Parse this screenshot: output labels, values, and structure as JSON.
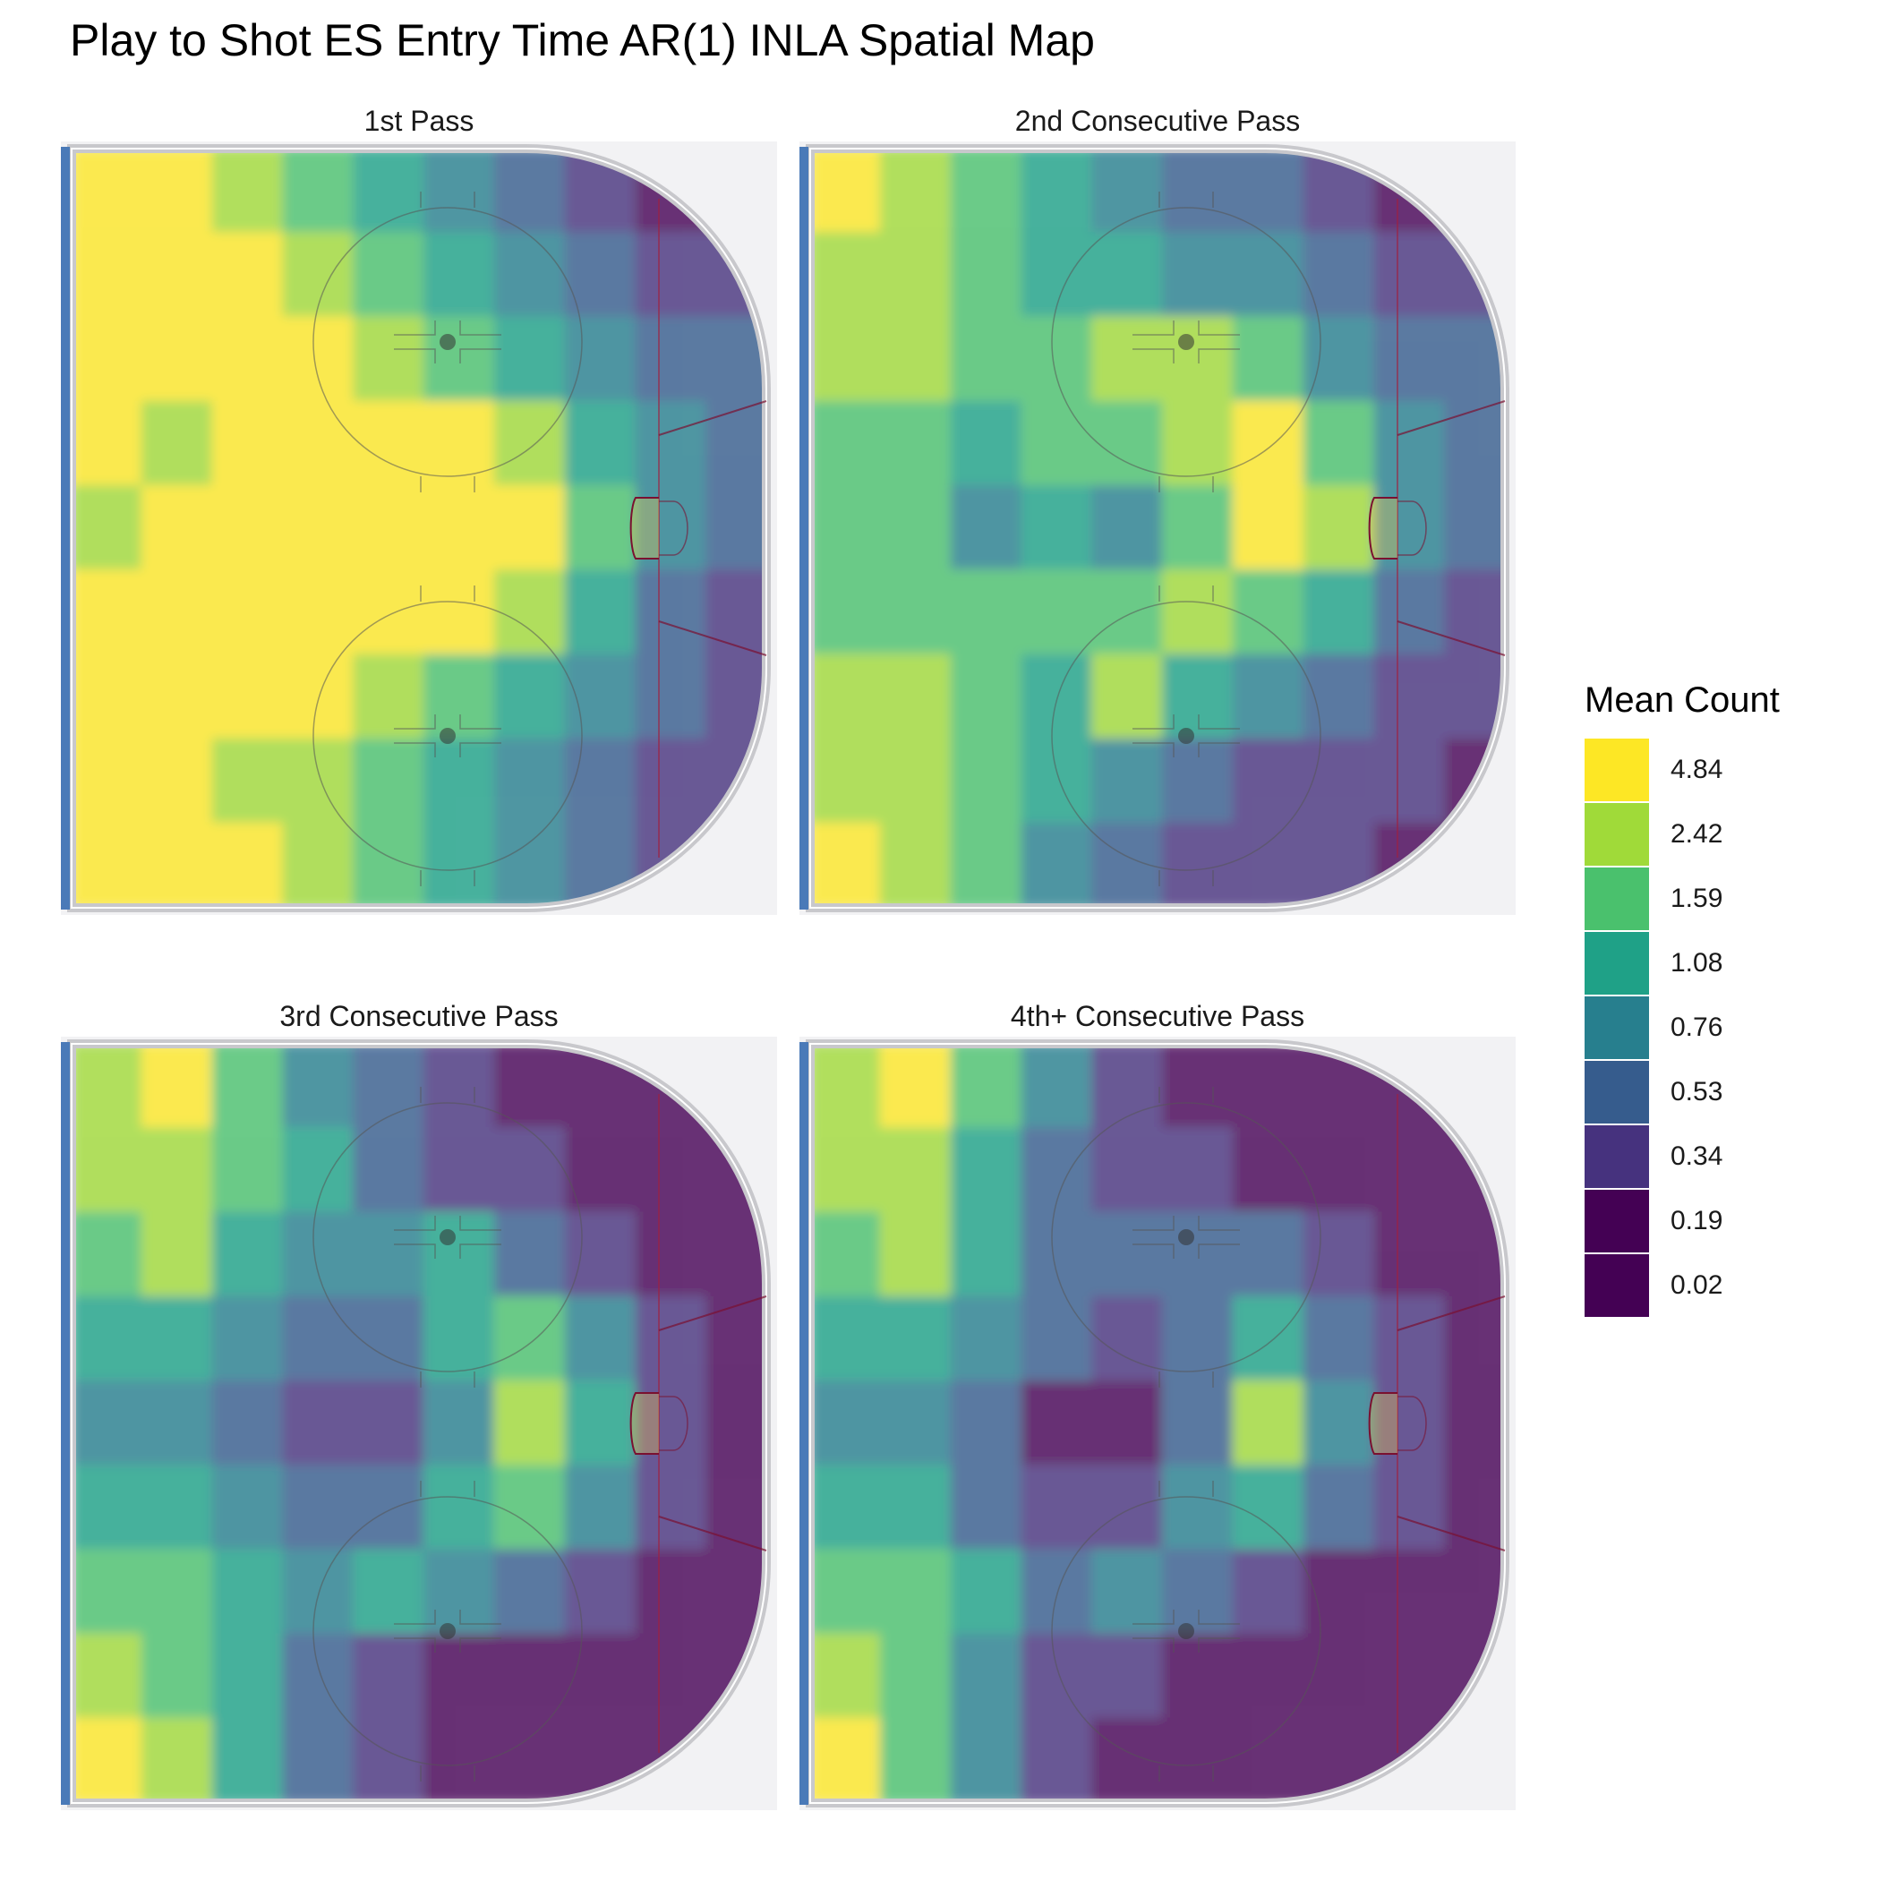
{
  "chart_data": {
    "type": "heatmap",
    "title": "Play to Shot ES Entry Time AR(1) INLA Spatial Map",
    "facets": [
      {
        "label": "1st Pass",
        "grid": [
          [
            4.84,
            4.84,
            2.42,
            1.59,
            1.08,
            0.76,
            0.53,
            0.34,
            0.19,
            0.19
          ],
          [
            4.84,
            4.84,
            4.84,
            2.42,
            1.59,
            1.08,
            0.76,
            0.53,
            0.34,
            0.34
          ],
          [
            4.84,
            4.84,
            4.84,
            4.84,
            2.42,
            1.59,
            1.08,
            0.76,
            0.53,
            0.53
          ],
          [
            4.84,
            2.42,
            4.84,
            4.84,
            4.84,
            4.84,
            2.42,
            1.08,
            0.76,
            0.53
          ],
          [
            2.42,
            4.84,
            4.84,
            4.84,
            4.84,
            4.84,
            4.84,
            1.59,
            0.76,
            0.53
          ],
          [
            4.84,
            4.84,
            4.84,
            4.84,
            4.84,
            4.84,
            2.42,
            1.08,
            0.53,
            0.34
          ],
          [
            4.84,
            4.84,
            4.84,
            4.84,
            2.42,
            1.59,
            1.08,
            0.76,
            0.53,
            0.34
          ],
          [
            4.84,
            4.84,
            2.42,
            2.42,
            1.59,
            1.08,
            0.76,
            0.53,
            0.34,
            0.34
          ],
          [
            4.84,
            4.84,
            4.84,
            2.42,
            1.59,
            1.08,
            0.76,
            0.53,
            0.34,
            0.34
          ]
        ]
      },
      {
        "label": "2nd Consecutive Pass",
        "grid": [
          [
            4.84,
            2.42,
            1.59,
            1.08,
            0.76,
            0.53,
            0.53,
            0.34,
            0.19,
            0.19
          ],
          [
            2.42,
            2.42,
            1.59,
            1.08,
            1.08,
            0.76,
            0.76,
            0.53,
            0.34,
            0.34
          ],
          [
            2.42,
            2.42,
            1.59,
            1.59,
            2.42,
            2.42,
            1.59,
            0.76,
            0.53,
            0.53
          ],
          [
            1.59,
            1.59,
            1.08,
            1.59,
            1.59,
            2.42,
            4.84,
            1.59,
            0.76,
            0.53
          ],
          [
            1.59,
            1.59,
            0.76,
            1.08,
            0.76,
            1.59,
            4.84,
            2.42,
            0.76,
            0.53
          ],
          [
            1.59,
            1.59,
            1.59,
            1.59,
            1.59,
            2.42,
            1.59,
            1.08,
            0.53,
            0.34
          ],
          [
            2.42,
            2.42,
            1.59,
            1.08,
            2.42,
            1.08,
            0.76,
            0.53,
            0.34,
            0.34
          ],
          [
            2.42,
            2.42,
            1.59,
            1.08,
            0.76,
            0.53,
            0.34,
            0.34,
            0.34,
            0.19
          ],
          [
            4.84,
            2.42,
            1.59,
            0.76,
            0.53,
            0.34,
            0.34,
            0.34,
            0.19,
            0.19
          ]
        ]
      },
      {
        "label": "3rd Consecutive Pass",
        "grid": [
          [
            2.42,
            4.84,
            1.59,
            0.76,
            0.53,
            0.34,
            0.19,
            0.19,
            0.19,
            0.19
          ],
          [
            2.42,
            2.42,
            1.59,
            1.08,
            0.53,
            0.34,
            0.34,
            0.19,
            0.19,
            0.19
          ],
          [
            1.59,
            2.42,
            1.08,
            0.76,
            0.76,
            1.08,
            0.53,
            0.34,
            0.19,
            0.19
          ],
          [
            1.08,
            1.08,
            0.76,
            0.53,
            0.53,
            1.08,
            1.59,
            0.76,
            0.34,
            0.19
          ],
          [
            0.76,
            0.76,
            0.53,
            0.34,
            0.34,
            0.76,
            2.42,
            1.08,
            0.34,
            0.19
          ],
          [
            1.08,
            1.08,
            0.76,
            0.53,
            0.53,
            1.08,
            1.59,
            0.76,
            0.34,
            0.19
          ],
          [
            1.59,
            1.59,
            1.08,
            0.76,
            1.08,
            0.76,
            0.53,
            0.34,
            0.19,
            0.19
          ],
          [
            2.42,
            1.59,
            1.08,
            0.53,
            0.34,
            0.19,
            0.19,
            0.19,
            0.19,
            0.19
          ],
          [
            4.84,
            2.42,
            1.08,
            0.53,
            0.34,
            0.19,
            0.19,
            0.19,
            0.19,
            0.19
          ]
        ]
      },
      {
        "label": "4th+ Consecutive Pass",
        "grid": [
          [
            2.42,
            4.84,
            1.59,
            0.76,
            0.34,
            0.19,
            0.19,
            0.19,
            0.19,
            0.19
          ],
          [
            2.42,
            2.42,
            1.08,
            0.53,
            0.34,
            0.34,
            0.19,
            0.19,
            0.19,
            0.19
          ],
          [
            1.59,
            2.42,
            1.08,
            0.53,
            0.53,
            0.53,
            0.53,
            0.34,
            0.19,
            0.19
          ],
          [
            1.08,
            1.08,
            0.76,
            0.53,
            0.34,
            0.53,
            1.08,
            0.53,
            0.34,
            0.19
          ],
          [
            0.76,
            0.76,
            0.53,
            0.19,
            0.19,
            0.53,
            2.42,
            0.76,
            0.34,
            0.19
          ],
          [
            1.08,
            1.08,
            0.53,
            0.34,
            0.34,
            0.76,
            1.08,
            0.53,
            0.34,
            0.19
          ],
          [
            1.59,
            1.59,
            1.08,
            0.53,
            0.76,
            0.53,
            0.34,
            0.19,
            0.19,
            0.19
          ],
          [
            2.42,
            1.59,
            0.76,
            0.34,
            0.34,
            0.19,
            0.19,
            0.19,
            0.19,
            0.19
          ],
          [
            4.84,
            1.59,
            0.76,
            0.34,
            0.19,
            0.19,
            0.19,
            0.19,
            0.19,
            0.19
          ]
        ]
      }
    ],
    "legend": {
      "title": "Mean Count",
      "entries": [
        {
          "label": "4.84",
          "value": 4.84,
          "color": "#fde725"
        },
        {
          "label": "2.42",
          "value": 2.42,
          "color": "#a0da39"
        },
        {
          "label": "1.59",
          "value": 1.59,
          "color": "#4ac16d"
        },
        {
          "label": "1.08",
          "value": 1.08,
          "color": "#1fa187"
        },
        {
          "label": "0.76",
          "value": 0.76,
          "color": "#277f8e"
        },
        {
          "label": "0.53",
          "value": 0.53,
          "color": "#365c8d"
        },
        {
          "label": "0.34",
          "value": 0.34,
          "color": "#46327e"
        },
        {
          "label": "0.19",
          "value": 0.19,
          "color": "#440154"
        },
        {
          "label": "0.02",
          "value": 0.02,
          "color": "#440154"
        }
      ],
      "position": "right"
    }
  }
}
